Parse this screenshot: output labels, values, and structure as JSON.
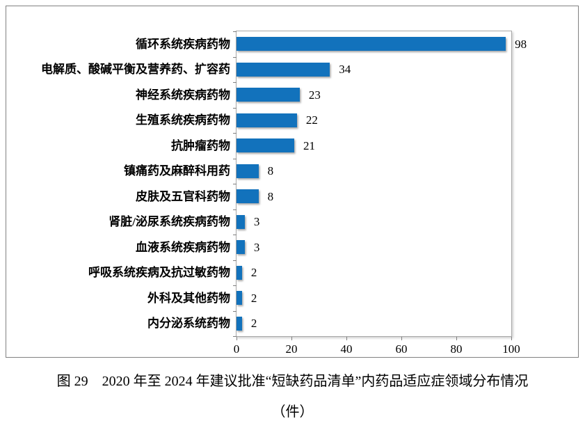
{
  "figure": {
    "caption_line1": "图 29　2020 年至 2024 年建议批准“短缺药品清单”内药品适应症领域分布情况",
    "caption_line2": "（件）"
  },
  "chart_data": {
    "type": "bar",
    "orientation": "horizontal",
    "title": "图 29　2020 年至 2024 年建议批准“短缺药品清单”内药品适应症领域分布情况（件）",
    "categories": [
      "循环系统疾病药物",
      "电解质、酸碱平衡及营养药、扩容药",
      "神经系统疾病药物",
      "生殖系统疾病药物",
      "抗肿瘤药物",
      "镇痛药及麻醉科用药",
      "皮肤及五官科药物",
      "肾脏/泌尿系统疾病药物",
      "血液系统疾病药物",
      "呼吸系统疾病及抗过敏药物",
      "外科及其他药物",
      "内分泌系统药物"
    ],
    "values": [
      98,
      34,
      23,
      22,
      21,
      8,
      8,
      3,
      3,
      2,
      2,
      2
    ],
    "value_labels": [
      "98",
      "34",
      "23",
      "22",
      "21",
      "8",
      "8",
      "3",
      "3",
      "2",
      "2",
      "2"
    ],
    "xlim": [
      0,
      100
    ],
    "xticks": [
      "0",
      "20",
      "40",
      "60",
      "80",
      "100"
    ],
    "grid": false,
    "legend": null,
    "bar_color": "#1272bc",
    "plot_border_color": "#a8a8a8",
    "frame_border_color": "#808080",
    "tick_color": "#7f7f7f",
    "text_color": "#000000"
  }
}
